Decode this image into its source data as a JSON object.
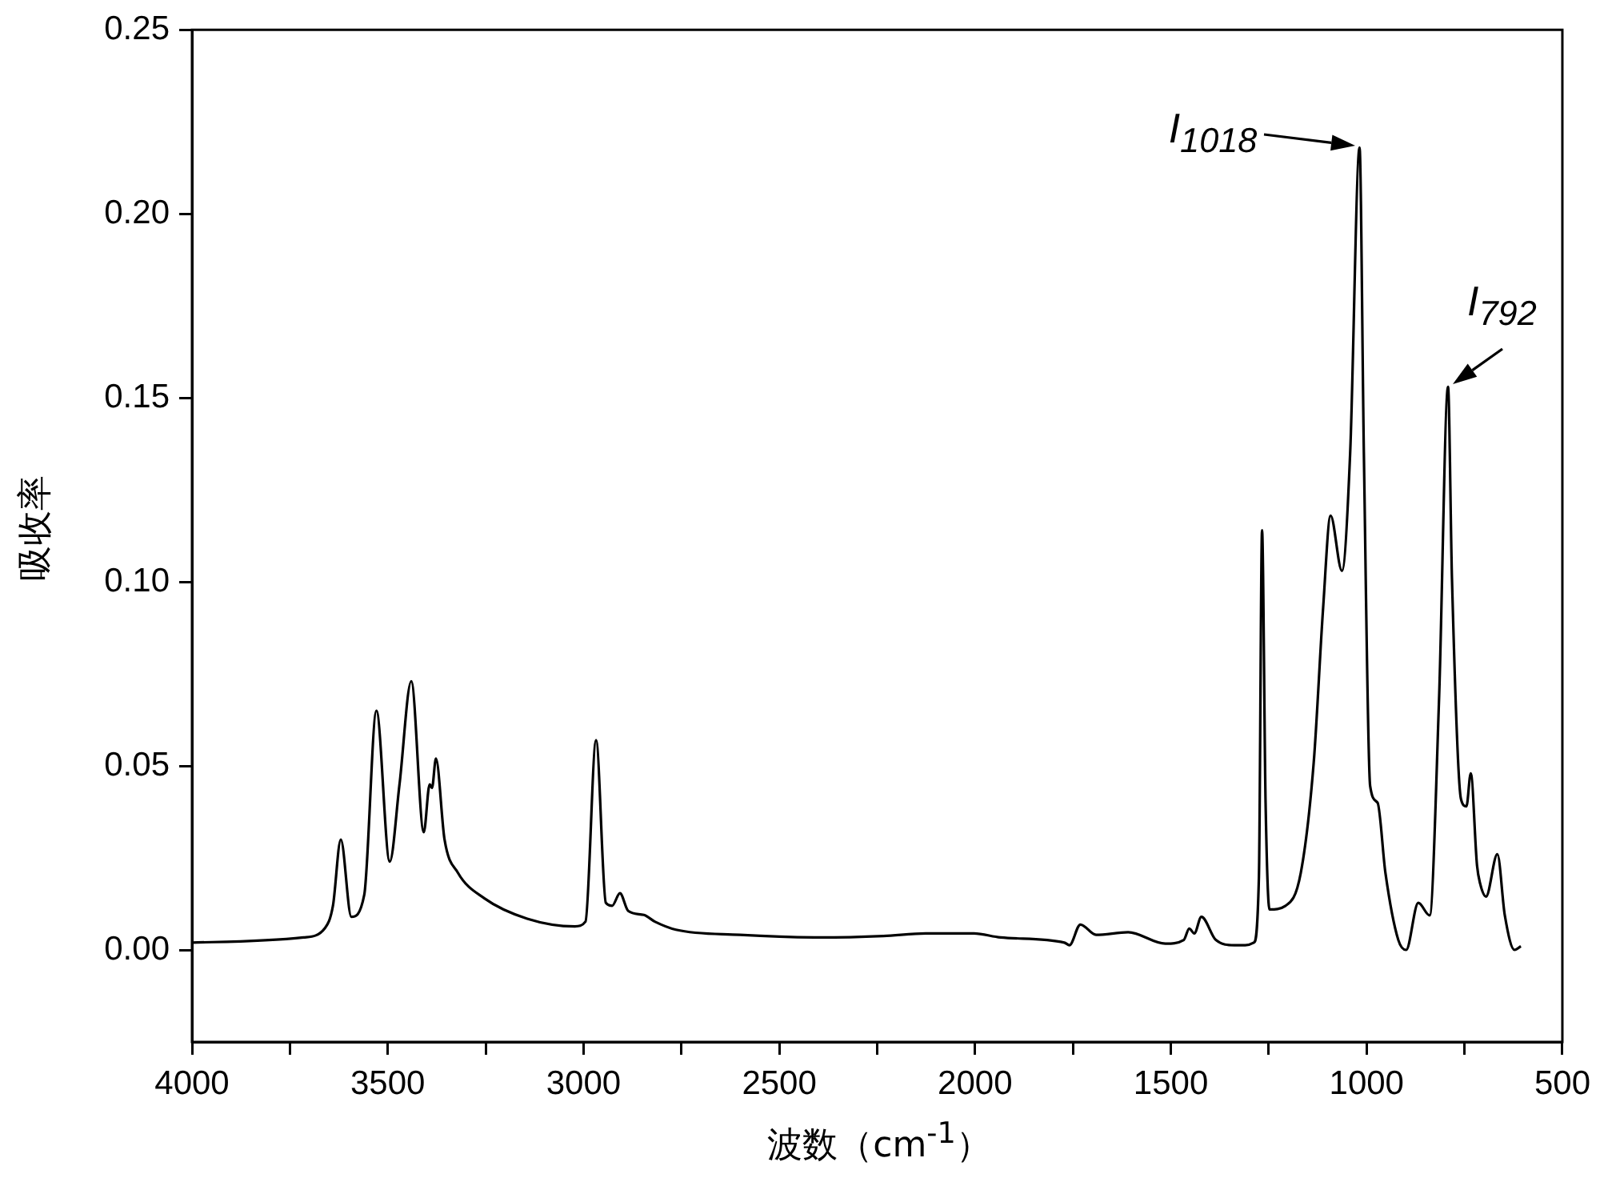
{
  "chart_data": {
    "type": "line",
    "xlabel": "波数（cm$^{-1}$）",
    "ylabel": "吸收率",
    "xlim": [
      4000,
      500
    ],
    "xticks": [
      4000,
      {
        "value": 3750,
        "label": null
      },
      3500,
      {
        "value": 3250,
        "label": null
      },
      3000,
      {
        "value": 2750,
        "label": null
      },
      2500,
      {
        "value": 2250,
        "label": null
      },
      2000,
      {
        "value": 1750,
        "label": null
      },
      1500,
      {
        "value": 1250,
        "label": null
      },
      1000,
      {
        "value": 750,
        "label": null
      },
      500
    ],
    "ylim": [
      -0.025,
      0.25
    ],
    "yticks": [
      {
        "value": 0,
        "label": "0.00"
      },
      {
        "value": 0.05,
        "label": "0.05"
      },
      {
        "value": 0.1,
        "label": "0.10"
      },
      {
        "value": 0.15,
        "label": "0.15"
      },
      {
        "value": 0.2,
        "label": "0.20"
      },
      {
        "value": 0.25,
        "label": "0.25"
      }
    ],
    "grid": false,
    "legend": false,
    "marker": "none",
    "line_style": "solid",
    "annotations": [
      {
        "text": "I$_{1018}$",
        "x": 1018,
        "y": 0.218
      },
      {
        "text": "I$_{792}$",
        "x": 792,
        "y": 0.153
      }
    ],
    "series": [
      {
        "color": "#000000",
        "x": [
          4000,
          3715,
          3660,
          3640,
          3620,
          3593,
          3560,
          3529,
          3495,
          3470,
          3440,
          3408,
          3393,
          3387,
          3377,
          3355,
          3321,
          3253,
          3144,
          3022,
          2995,
          2968,
          2943,
          2927,
          2907,
          2886,
          2846,
          2818,
          2764,
          2601,
          2397,
          2234,
          2126,
          2003,
          1935,
          1772,
          1759,
          1731,
          1691,
          1609,
          1514,
          1467,
          1453,
          1440,
          1422,
          1385,
          1338,
          1310,
          1288,
          1275,
          1267,
          1258,
          1248,
          1207,
          1168,
          1135,
          1111,
          1092,
          1063,
          1042,
          1018,
          1007,
          991,
          972,
          952,
          919,
          899,
          868,
          839,
          815,
          792,
          782,
          759,
          745,
          734,
          718,
          710,
          695,
          666,
          647,
          622,
          606
        ],
        "values": [
          0.002,
          0.0034,
          0.006,
          0.012,
          0.03,
          0.009,
          0.015,
          0.065,
          0.024,
          0.045,
          0.073,
          0.032,
          0.045,
          0.044,
          0.052,
          0.03,
          0.021,
          0.014,
          0.0085,
          0.0064,
          0.0077,
          0.057,
          0.0128,
          0.012,
          0.0154,
          0.0106,
          0.0095,
          0.0077,
          0.0055,
          0.0041,
          0.0034,
          0.0038,
          0.0045,
          0.0045,
          0.0034,
          0.002,
          0.0013,
          0.0069,
          0.0041,
          0.0048,
          0.0017,
          0.0027,
          0.0058,
          0.0045,
          0.009,
          0.0027,
          0.0013,
          0.0013,
          0.002,
          0.02,
          0.114,
          0.04,
          0.011,
          0.012,
          0.021,
          0.051,
          0.093,
          0.118,
          0.103,
          0.135,
          0.218,
          0.135,
          0.0446,
          0.04,
          0.021,
          0.0027,
          0.0,
          0.0128,
          0.0094,
          0.068,
          0.153,
          0.101,
          0.041,
          0.039,
          0.048,
          0.023,
          0.018,
          0.0145,
          0.026,
          0.0094,
          0.0,
          0.001
        ]
      }
    ]
  }
}
